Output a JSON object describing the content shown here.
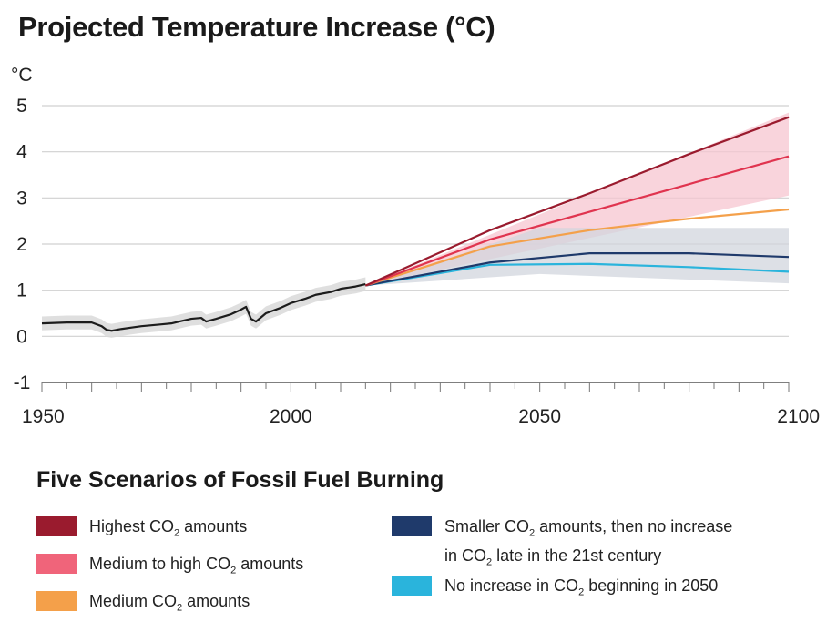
{
  "chart_data": {
    "type": "line",
    "title": "Projected Temperature Increase (°C)",
    "ylabel": "°C",
    "xlabel": "",
    "xlim": [
      1950,
      2100
    ],
    "ylim": [
      -1,
      5
    ],
    "yticks": [
      "5",
      "4",
      "3",
      "2",
      "1",
      "0",
      "-1"
    ],
    "xticks": [
      "1950",
      "2000",
      "2050",
      "2100"
    ],
    "grid": true,
    "historical": {
      "name": "",
      "color": "#1c1c1c",
      "band_color": "#d9d9d9",
      "x": [
        1950,
        1955,
        1960,
        1962,
        1963,
        1964,
        1966,
        1968,
        1970,
        1972,
        1974,
        1976,
        1978,
        1980,
        1982,
        1983,
        1985,
        1988,
        1990,
        1991,
        1992,
        1993,
        1995,
        1998,
        2000,
        2003,
        2005,
        2008,
        2010,
        2013,
        2015
      ],
      "y": [
        0.28,
        0.3,
        0.3,
        0.22,
        0.14,
        0.12,
        0.16,
        0.19,
        0.22,
        0.24,
        0.26,
        0.28,
        0.33,
        0.38,
        0.4,
        0.32,
        0.38,
        0.48,
        0.58,
        0.64,
        0.38,
        0.32,
        0.5,
        0.62,
        0.72,
        0.82,
        0.9,
        0.96,
        1.03,
        1.08,
        1.13
      ],
      "band_half_width": 0.15
    },
    "series": [
      {
        "name": "Highest CO2 amounts",
        "color": "#9a1b2e",
        "x": [
          2015,
          2040,
          2060,
          2080,
          2100
        ],
        "y": [
          1.1,
          2.3,
          3.1,
          3.95,
          4.75
        ]
      },
      {
        "name": "Medium to high CO2 amounts",
        "color": "#e0344f",
        "x": [
          2015,
          2040,
          2060,
          2080,
          2100
        ],
        "y": [
          1.1,
          2.1,
          2.7,
          3.3,
          3.9
        ]
      },
      {
        "name": "Medium CO2 amounts",
        "color": "#f4a04a",
        "x": [
          2015,
          2040,
          2060,
          2080,
          2100
        ],
        "y": [
          1.1,
          1.95,
          2.3,
          2.55,
          2.75
        ]
      },
      {
        "name": "Smaller CO2 amounts, then no increase in CO2 late in the 21st century",
        "color": "#1f3a6b",
        "x": [
          2015,
          2040,
          2060,
          2080,
          2100
        ],
        "y": [
          1.1,
          1.6,
          1.8,
          1.8,
          1.72
        ]
      },
      {
        "name": "No increase in CO2 beginning in 2050",
        "color": "#2ab4dc",
        "x": [
          2015,
          2040,
          2060,
          2080,
          2100
        ],
        "y": [
          1.1,
          1.55,
          1.57,
          1.5,
          1.4
        ]
      }
    ],
    "bands": [
      {
        "color": "#f7c6d0",
        "x": [
          2015,
          2100
        ],
        "lower": [
          1.1,
          3.05
        ],
        "upper": [
          1.1,
          4.85
        ]
      },
      {
        "color": "#d2d6de",
        "x": [
          2015,
          2050,
          2100
        ],
        "lower": [
          1.1,
          1.35,
          1.15
        ],
        "upper": [
          1.1,
          2.35,
          2.35
        ]
      }
    ]
  },
  "legend": {
    "title": "Five Scenarios of Fossil Fuel Burning",
    "items": [
      {
        "text_before": "Highest CO",
        "sub": "2",
        "text_after": " amounts",
        "line2_before": "",
        "line2_sub": "",
        "line2_after": "",
        "color": "#9a1b2e"
      },
      {
        "text_before": "Medium to high CO",
        "sub": "2",
        "text_after": " amounts",
        "line2_before": "",
        "line2_sub": "",
        "line2_after": "",
        "color": "#f0647a"
      },
      {
        "text_before": "Medium CO",
        "sub": "2",
        "text_after": " amounts",
        "line2_before": "",
        "line2_sub": "",
        "line2_after": "",
        "color": "#f4a04a"
      },
      {
        "text_before": "Smaller CO",
        "sub": "2",
        "text_after": " amounts, then no increase",
        "line2_before": "in CO",
        "line2_sub": "2",
        "line2_after": " late in the 21st century",
        "color": "#1f3a6b"
      },
      {
        "text_before": "No increase in CO",
        "sub": "2",
        "text_after": " beginning in 2050",
        "line2_before": "",
        "line2_sub": "",
        "line2_after": "",
        "color": "#2ab4dc"
      }
    ]
  }
}
